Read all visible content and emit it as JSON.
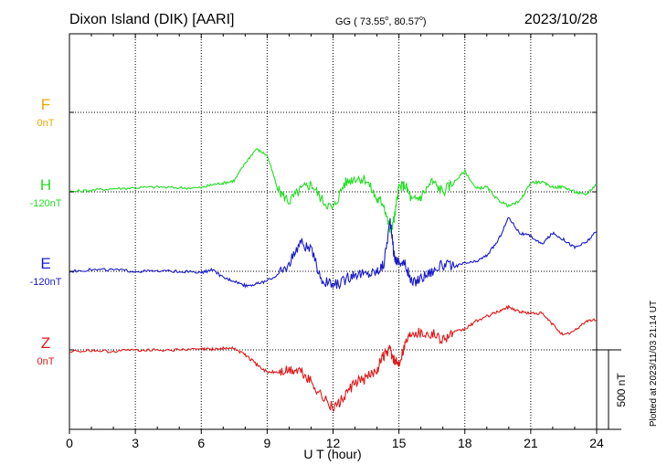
{
  "header": {
    "station": "Dixon Island (DIK)  [AARI]",
    "coords_prefix": "GG ( 73.55",
    "coords_mid": ",  80.57",
    "coords_suffix": ")",
    "degree_sign": "o",
    "date": "2023/10/28"
  },
  "side_note": "Plotted at 2023/11/03 21:14 UT",
  "scale_bar": {
    "label": "500 nT",
    "value_nT": 500
  },
  "colors": {
    "F": "#f0a800",
    "H": "#22dd22",
    "E": "#1a1acc",
    "Z": "#e01818",
    "axis": "#000000",
    "grid": "#000000"
  },
  "chart_data": {
    "type": "line",
    "title": "Dixon Island (DIK)  [AARI]",
    "xlabel": "U T (hour)",
    "ylabel": "",
    "xlim": [
      0,
      24
    ],
    "x_ticks": [
      0,
      3,
      6,
      9,
      12,
      15,
      18,
      21,
      24
    ],
    "x_tick_labels": [
      "0",
      "3",
      "6",
      "9",
      "12",
      "15",
      "18",
      "21",
      "24"
    ],
    "grid": true,
    "nT_per_panel_band": 500,
    "series": [
      {
        "name": "F",
        "baseline_label": "0nT",
        "baseline_nT": 0,
        "x": [],
        "values": []
      },
      {
        "name": "H",
        "baseline_label": "-120nT",
        "baseline_nT": -120,
        "x": [
          0,
          1,
          2,
          3,
          4,
          5,
          6,
          6.5,
          7,
          7.5,
          8,
          8.5,
          9,
          9.5,
          10,
          10.5,
          11,
          11.5,
          12,
          12.5,
          13,
          13.5,
          14,
          14.3,
          14.6,
          14.8,
          15,
          15.3,
          15.6,
          16,
          16.5,
          17,
          17.5,
          18,
          18.5,
          19,
          19.5,
          20,
          20.5,
          21,
          21.5,
          22,
          22.5,
          23,
          23.5,
          24
        ],
        "values": [
          -120,
          -110,
          -100,
          -95,
          -90,
          -95,
          -95,
          -75,
          -65,
          -50,
          60,
          150,
          110,
          -110,
          -180,
          -110,
          -70,
          -170,
          -230,
          -70,
          -30,
          -40,
          -170,
          -190,
          -370,
          -280,
          -90,
          -80,
          -180,
          -150,
          -55,
          -120,
          -60,
          10,
          -100,
          -90,
          -170,
          -210,
          -180,
          -60,
          -60,
          -90,
          -90,
          -120,
          -140,
          -70
        ]
      },
      {
        "name": "E",
        "baseline_label": "-120nT",
        "baseline_nT": -120,
        "x": [
          0,
          1,
          2,
          3,
          4,
          5,
          6,
          6.5,
          7,
          7.5,
          8,
          8.5,
          9,
          9.5,
          10,
          10.5,
          11,
          11.5,
          12,
          12.5,
          13,
          13.5,
          14,
          14.3,
          14.6,
          14.8,
          15,
          15.3,
          15.6,
          16,
          16.5,
          17,
          17.5,
          18,
          18.5,
          19,
          19.5,
          20,
          20.5,
          21,
          21.5,
          22,
          22.5,
          23,
          23.5,
          24
        ],
        "values": [
          -120,
          -110,
          -110,
          -120,
          -120,
          -120,
          -130,
          -110,
          -160,
          -180,
          -210,
          -200,
          -180,
          -140,
          -80,
          70,
          10,
          -180,
          -210,
          -180,
          -130,
          -140,
          -120,
          -80,
          200,
          -40,
          -60,
          -80,
          -200,
          -160,
          -120,
          -80,
          -90,
          -70,
          -60,
          -20,
          70,
          220,
          120,
          100,
          50,
          120,
          80,
          30,
          60,
          130
        ]
      },
      {
        "name": "Z",
        "baseline_label": "0nT",
        "baseline_nT": 0,
        "x": [
          0,
          1,
          2,
          3,
          4,
          5,
          6,
          6.5,
          7,
          7.5,
          8,
          8.5,
          9,
          9.5,
          10,
          10.5,
          11,
          11.5,
          12,
          12.5,
          13,
          13.5,
          14,
          14.3,
          14.6,
          14.8,
          15,
          15.3,
          15.6,
          16,
          16.5,
          17,
          17.5,
          18,
          18.5,
          19,
          19.5,
          20,
          20.5,
          21,
          21.5,
          22,
          22.5,
          23,
          23.5,
          24
        ],
        "values": [
          -10,
          -5,
          -10,
          0,
          0,
          0,
          5,
          5,
          10,
          10,
          -30,
          -90,
          -140,
          -140,
          -130,
          -130,
          -200,
          -290,
          -370,
          -300,
          -210,
          -180,
          -120,
          -40,
          0,
          -80,
          -80,
          50,
          120,
          110,
          100,
          70,
          110,
          130,
          180,
          210,
          240,
          270,
          240,
          230,
          230,
          160,
          90,
          120,
          180,
          190
        ]
      }
    ]
  }
}
